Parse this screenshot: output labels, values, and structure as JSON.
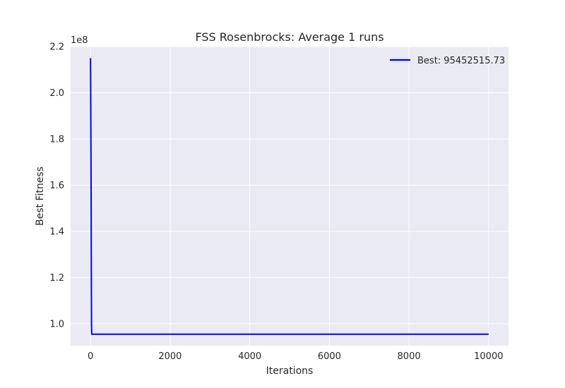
{
  "chart_data": {
    "type": "line",
    "title": "FSS Rosenbrocks: Average 1 runs",
    "xlabel": "Iterations",
    "ylabel": "Best Fitness",
    "offset_label": "1e8",
    "xlim": [
      -500,
      10500
    ],
    "ylim": [
      0.905,
      2.2
    ],
    "y_scale_factor": 100000000,
    "x_ticks": [
      0,
      2000,
      4000,
      6000,
      8000,
      10000
    ],
    "x_tick_labels": [
      "0",
      "2000",
      "4000",
      "6000",
      "8000",
      "10000"
    ],
    "y_ticks": [
      1.0,
      1.2,
      1.4,
      1.6,
      1.8,
      2.0,
      2.2
    ],
    "y_tick_labels": [
      "1.0",
      "1.2",
      "1.4",
      "1.6",
      "1.8",
      "2.0",
      "2.2"
    ],
    "grid": true,
    "legend_position": "top-right",
    "background": "#eaeaf2",
    "series": [
      {
        "name": "Best: 95452515.73",
        "color": "#0000ff",
        "x": [
          0,
          5,
          10,
          15,
          20,
          25,
          30,
          10000
        ],
        "y": [
          2.15,
          1.98,
          1.78,
          1.55,
          1.2,
          0.99,
          0.9545,
          0.9545
        ]
      }
    ]
  }
}
